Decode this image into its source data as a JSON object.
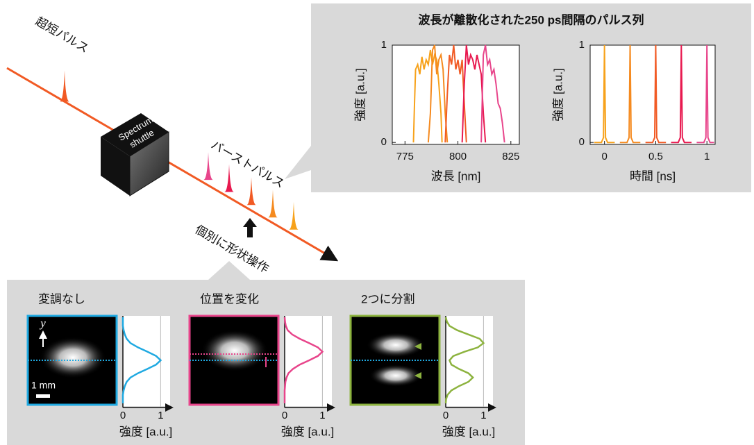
{
  "diagram": {
    "input_label": "超短パルス",
    "device_label": [
      "Spectrum",
      "shuttle"
    ],
    "burst_label": "バーストパルス",
    "operation_label": "個別に形状操作",
    "beam_color": "#f15a24",
    "pulse_colors": [
      "#e8458b",
      "#e8194f",
      "#f15a24",
      "#f58a1f",
      "#f7a21b"
    ]
  },
  "panel_title": "波長が離散化された250 ps間隔のパルス列",
  "chart_data": [
    {
      "type": "line",
      "x_label": "波長 [nm]",
      "y_label": "強度 [a.u.]",
      "xlim": [
        769,
        829
      ],
      "ylim": [
        -0.02,
        1
      ],
      "xticks": [
        775,
        800,
        825
      ],
      "yticks": [
        0,
        1
      ],
      "series": [
        {
          "color": "#f7a21b",
          "x": [
            779,
            779.5,
            780,
            781,
            782,
            783,
            784,
            785,
            786,
            787,
            788,
            789,
            790,
            791,
            792,
            792.5
          ],
          "values": [
            0,
            0.4,
            0.75,
            0.8,
            0.7,
            0.88,
            0.75,
            0.85,
            0.8,
            0.95,
            0.8,
            0.9,
            0.85,
            0.6,
            0.3,
            0
          ]
        },
        {
          "color": "#f58a1f",
          "x": [
            786,
            787,
            788,
            789,
            790,
            791,
            792,
            793,
            794,
            795
          ],
          "values": [
            0,
            0.3,
            0.95,
            1,
            0.7,
            0.85,
            0.9,
            0.75,
            0.3,
            0
          ]
        },
        {
          "color": "#f15a24",
          "x": [
            794,
            795,
            796,
            797,
            798,
            799,
            800,
            801,
            802,
            803,
            804
          ],
          "values": [
            0,
            0.5,
            0.9,
            0.8,
            1,
            0.75,
            0.85,
            0.7,
            0.85,
            0.4,
            0
          ]
        },
        {
          "color": "#e8194f",
          "x": [
            802,
            803,
            804,
            805,
            806,
            807,
            808,
            809,
            810,
            811,
            812,
            813
          ],
          "values": [
            0,
            0.6,
            1,
            0.8,
            0.9,
            0.85,
            0.75,
            0.9,
            0.8,
            0.7,
            0.3,
            0
          ]
        },
        {
          "color": "#e8458b",
          "x": [
            811,
            812,
            813,
            814,
            815,
            816,
            817,
            818,
            819,
            820,
            821,
            822
          ],
          "values": [
            0,
            0.9,
            1,
            0.8,
            0.85,
            0.7,
            0.75,
            0.6,
            0.4,
            0.35,
            0.2,
            0
          ]
        }
      ]
    },
    {
      "type": "line",
      "x_label": "時間 [ns]",
      "y_label": "強度 [a.u.]",
      "xlim": [
        -0.14,
        1.08
      ],
      "ylim": [
        -0.02,
        1
      ],
      "xticks": [
        0,
        0.5,
        1
      ],
      "yticks": [
        0,
        1
      ],
      "series": [
        {
          "color": "#f7a21b",
          "x": [
            -0.1,
            -0.03,
            -0.01,
            0,
            0.01,
            0.03,
            0.1
          ],
          "values": [
            0,
            0,
            0.05,
            1,
            0.05,
            0,
            0
          ]
        },
        {
          "color": "#f58a1f",
          "x": [
            0.15,
            0.22,
            0.24,
            0.25,
            0.26,
            0.28,
            0.35
          ],
          "values": [
            0,
            0,
            0.05,
            1,
            0.05,
            0,
            0
          ]
        },
        {
          "color": "#f15a24",
          "x": [
            0.4,
            0.47,
            0.49,
            0.5,
            0.51,
            0.53,
            0.6
          ],
          "values": [
            0,
            0,
            0.05,
            1,
            0.05,
            0,
            0
          ]
        },
        {
          "color": "#e8194f",
          "x": [
            0.65,
            0.72,
            0.74,
            0.75,
            0.76,
            0.78,
            0.85
          ],
          "values": [
            0,
            0,
            0.05,
            1,
            0.05,
            0,
            0
          ]
        },
        {
          "color": "#e8458b",
          "x": [
            0.9,
            0.97,
            0.99,
            1,
            1.01,
            1.03,
            1.07
          ],
          "values": [
            0,
            0,
            0.05,
            1,
            0.05,
            0,
            0
          ]
        }
      ]
    }
  ],
  "beam_profiles": {
    "x_label": "強度 [a.u.]",
    "xlim": [
      0,
      1.25
    ],
    "xticks": [
      0,
      1
    ],
    "scale_label": "1 mm",
    "axis_symbol": "y",
    "panels": [
      {
        "title": "変調なし",
        "color": "#1fa9e1",
        "values": [
          0,
          0,
          0,
          0.02,
          0.05,
          0.1,
          0.2,
          0.4,
          0.65,
          0.88,
          1,
          0.88,
          0.65,
          0.4,
          0.2,
          0.1,
          0.05,
          0.02,
          0,
          0,
          0
        ]
      },
      {
        "title": "位置を変化",
        "color": "#e8458b",
        "values": [
          0,
          0.01,
          0.03,
          0.08,
          0.2,
          0.4,
          0.65,
          0.88,
          1,
          0.88,
          0.65,
          0.4,
          0.22,
          0.1,
          0.05,
          0.02,
          0.01,
          0,
          0,
          0,
          0
        ]
      },
      {
        "title": "2つに分割",
        "color": "#8db33f",
        "values": [
          0,
          0.03,
          0.1,
          0.3,
          0.6,
          0.9,
          1,
          0.85,
          0.5,
          0.2,
          0.1,
          0.15,
          0.35,
          0.6,
          0.72,
          0.6,
          0.35,
          0.15,
          0.05,
          0.01,
          0
        ]
      }
    ]
  }
}
